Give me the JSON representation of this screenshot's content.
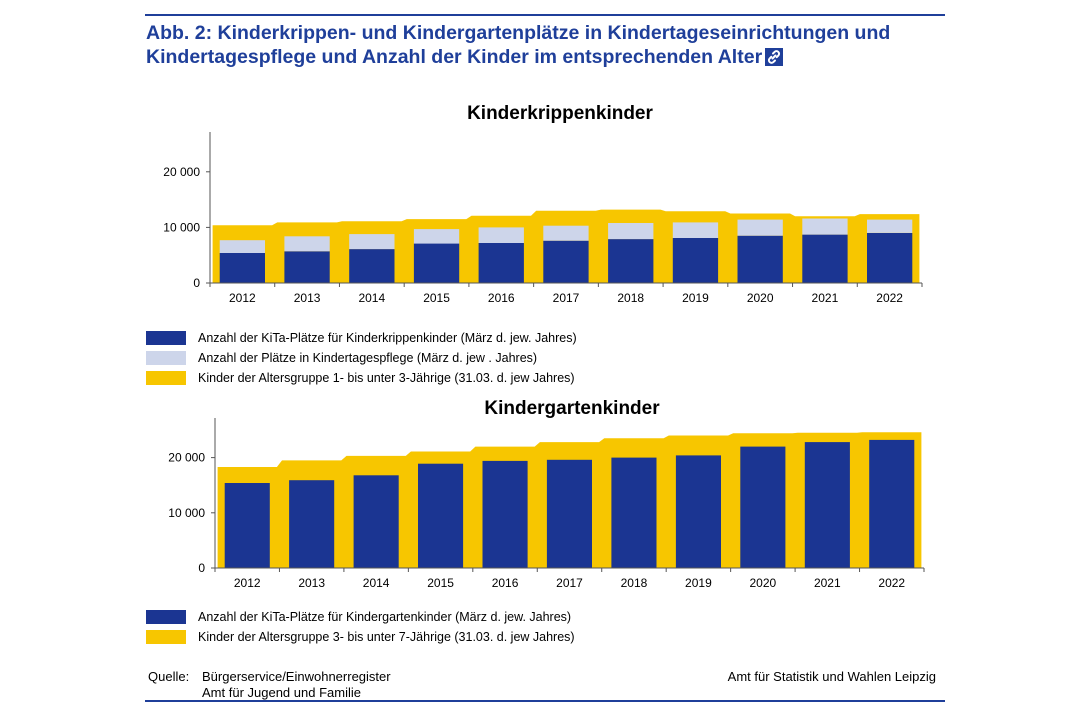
{
  "figure": {
    "title": "Abb. 2: Kinderkrippen- und Kindergartenplätze in Kindertageseinrichtungen und Kindertagespflege und Anzahl der Kinder im entsprechenden Alter",
    "link_icon": "link-icon"
  },
  "footer": {
    "source_label": "Quelle:",
    "source_line1": "Bürgerservice/Einwohnerregister",
    "source_line2": "Amt für Jugend und Familie",
    "publisher": "Amt für Statistik und Wahlen Leipzig"
  },
  "colors": {
    "title_blue": "#1f3f9a",
    "navy_bar": "#1b3592",
    "light_bar": "#cdd5ea",
    "yellow_area": "#f7c600",
    "axis": "#555555"
  },
  "chart_data": [
    {
      "type": "bar",
      "title": "Kinderkrippenkinder",
      "categories": [
        "2012",
        "2013",
        "2014",
        "2015",
        "2016",
        "2017",
        "2018",
        "2019",
        "2020",
        "2021",
        "2022"
      ],
      "ylim": [
        0,
        25000
      ],
      "yticks": [
        0,
        10000,
        20000
      ],
      "ytick_labels": [
        "0",
        "10 000",
        "20 000"
      ],
      "stacked": true,
      "series": [
        {
          "name": "Anzahl der KiTa-Plätze für Kinderkrippenkinder  (März d. jew. Jahres)",
          "kind": "bar",
          "color": "#1b3592",
          "values": [
            5400,
            5700,
            6100,
            7100,
            7200,
            7600,
            7900,
            8100,
            8500,
            8700,
            9000
          ]
        },
        {
          "name": "Anzahl der Plätze  in Kindertagespflege (März d. jew . Jahres)",
          "kind": "bar",
          "color": "#cdd5ea",
          "values": [
            2300,
            2700,
            2700,
            2600,
            2800,
            2700,
            2900,
            2800,
            2900,
            2900,
            2400
          ]
        },
        {
          "name": "Kinder der Altersgruppe 1- bis unter 3-Jährige (31.03. d. jew Jahres)",
          "kind": "area",
          "color": "#f7c600",
          "values": [
            10400,
            10900,
            11100,
            11500,
            12100,
            13000,
            13200,
            12900,
            12500,
            12000,
            12400
          ]
        }
      ]
    },
    {
      "type": "bar",
      "title": "Kindergartenkinder",
      "categories": [
        "2012",
        "2013",
        "2014",
        "2015",
        "2016",
        "2017",
        "2018",
        "2019",
        "2020",
        "2021",
        "2022"
      ],
      "ylim": [
        0,
        25000
      ],
      "yticks": [
        0,
        10000,
        20000
      ],
      "ytick_labels": [
        "0",
        "10 000",
        "20 000"
      ],
      "series": [
        {
          "name": "Anzahl der KiTa-Plätze für Kindergartenkinder (März d. jew. Jahres)",
          "kind": "bar",
          "color": "#1b3592",
          "values": [
            15400,
            15900,
            16800,
            18900,
            19400,
            19600,
            20000,
            20400,
            22000,
            22800,
            23200
          ]
        },
        {
          "name": "Kinder der Altersgruppe 3- bis unter 7-Jährige (31.03. d. jew Jahres)",
          "kind": "area",
          "color": "#f7c600",
          "values": [
            18300,
            19500,
            20300,
            21100,
            22000,
            22800,
            23500,
            24000,
            24400,
            24500,
            24600
          ]
        }
      ]
    }
  ]
}
